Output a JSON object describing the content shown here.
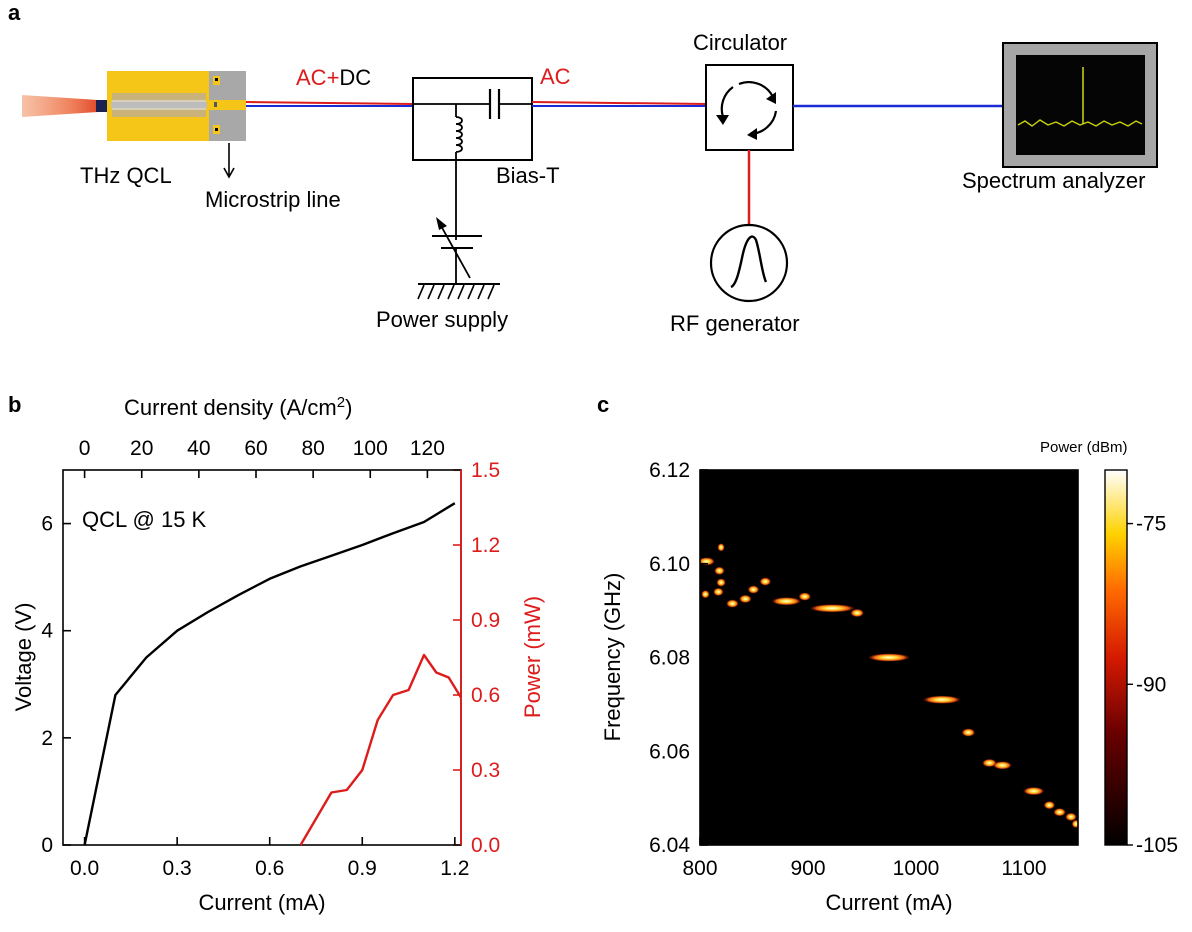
{
  "panel_a": {
    "label": "a",
    "qcl_label": "THz QCL",
    "microstrip_label": "Microstrip line",
    "acdc_ac": "AC",
    "acdc_plus": "+",
    "acdc_dc": "DC",
    "ac_label": "AC",
    "bias_t_label": "Bias-T",
    "circulator_label": "Circulator",
    "power_supply_label": "Power supply",
    "rf_generator_label": "RF generator",
    "spectrum_analyzer_label": "Spectrum analyzer",
    "colors": {
      "signal_red": "#dd1c1c",
      "line_blue": "#1a2bd6",
      "chip_gold": "#f5c518"
    }
  },
  "panel_b": {
    "label": "b",
    "annotation": "QCL @ 15 K",
    "chart_data": {
      "type": "line",
      "xlabel": "Current (mA)",
      "top_xlabel_text": "Current density (A/cm",
      "top_xlabel_sup": "2",
      "top_xlabel_close": ")",
      "ylabel_left": "Voltage (V)",
      "ylabel_right": "Power (mW)",
      "xlim": [
        -0.07,
        1.22
      ],
      "ylim_left": [
        0,
        7
      ],
      "ylim_right": [
        0,
        1.5
      ],
      "x_ticks": [
        "0.0",
        "0.3",
        "0.6",
        "0.9",
        "1.2"
      ],
      "x_tick_values": [
        0.0,
        0.3,
        0.6,
        0.9,
        1.2
      ],
      "top_ticks": [
        "0",
        "20",
        "40",
        "60",
        "80",
        "100",
        "120"
      ],
      "top_tick_values": [
        0,
        20,
        40,
        60,
        80,
        100,
        120
      ],
      "current_density_per_mA": 108,
      "y_left_ticks": [
        "0",
        "2",
        "4",
        "6"
      ],
      "y_left_tick_values": [
        0,
        2,
        4,
        6
      ],
      "y_right_ticks": [
        "0.0",
        "0.3",
        "0.6",
        "0.9",
        "1.2",
        "1.5"
      ],
      "y_right_tick_values": [
        0.0,
        0.3,
        0.6,
        0.9,
        1.2,
        1.5
      ],
      "series": [
        {
          "axis": "left",
          "color": "#000000",
          "x": [
            0.0,
            0.1,
            0.2,
            0.3,
            0.4,
            0.5,
            0.6,
            0.7,
            0.8,
            0.9,
            1.0,
            1.1,
            1.2
          ],
          "y": [
            0.0,
            2.8,
            3.5,
            4.0,
            4.35,
            4.67,
            4.97,
            5.2,
            5.4,
            5.6,
            5.82,
            6.03,
            6.38
          ]
        },
        {
          "axis": "right",
          "color": "#dd1c1c",
          "x": [
            0.7,
            0.8,
            0.85,
            0.9,
            0.95,
            1.0,
            1.05,
            1.1,
            1.14,
            1.18,
            1.22
          ],
          "y": [
            0.0,
            0.21,
            0.22,
            0.3,
            0.5,
            0.6,
            0.62,
            0.76,
            0.69,
            0.67,
            0.59
          ]
        }
      ]
    }
  },
  "panel_c": {
    "label": "c",
    "chart_data": {
      "type": "heatmap",
      "xlabel": "Current (mA)",
      "ylabel": "Frequency (GHz)",
      "colorbar_label": "Power (dBm)",
      "xlim": [
        800,
        1150
      ],
      "ylim": [
        6.04,
        6.12
      ],
      "x_ticks": [
        "800",
        "900",
        "1000",
        "1100"
      ],
      "x_tick_values": [
        800,
        900,
        1000,
        1100
      ],
      "y_ticks": [
        "6.04",
        "6.06",
        "6.08",
        "6.10",
        "6.12"
      ],
      "y_tick_values": [
        6.04,
        6.06,
        6.08,
        6.1,
        6.12
      ],
      "colorbar_range": [
        -105,
        -70
      ],
      "colorbar_ticks": [
        "-75",
        "-90",
        "-105"
      ],
      "colorbar_tick_values": [
        -75,
        -90,
        -105
      ],
      "background_level": -105,
      "peaks": [
        {
          "x0": 800,
          "x1": 812,
          "f": 6.1005
        },
        {
          "x0": 803,
          "x1": 807,
          "f": 6.0935
        },
        {
          "x0": 815,
          "x1": 821,
          "f": 6.0985
        },
        {
          "x0": 817,
          "x1": 822,
          "f": 6.096
        },
        {
          "x0": 814,
          "x1": 820,
          "f": 6.094
        },
        {
          "x0": 818,
          "x1": 821,
          "f": 6.1035
        },
        {
          "x0": 826,
          "x1": 834,
          "f": 6.0915
        },
        {
          "x0": 838,
          "x1": 846,
          "f": 6.0925
        },
        {
          "x0": 846,
          "x1": 853,
          "f": 6.0945
        },
        {
          "x0": 857,
          "x1": 864,
          "f": 6.0962
        },
        {
          "x0": 868,
          "x1": 892,
          "f": 6.092
        },
        {
          "x0": 893,
          "x1": 901,
          "f": 6.093
        },
        {
          "x0": 903,
          "x1": 942,
          "f": 6.0905
        },
        {
          "x0": 941,
          "x1": 950,
          "f": 6.0895
        },
        {
          "x0": 957,
          "x1": 993,
          "f": 6.08
        },
        {
          "x0": 1008,
          "x1": 1040,
          "f": 6.071
        },
        {
          "x0": 1044,
          "x1": 1053,
          "f": 6.064
        },
        {
          "x0": 1063,
          "x1": 1073,
          "f": 6.0575
        },
        {
          "x0": 1073,
          "x1": 1087,
          "f": 6.057
        },
        {
          "x0": 1101,
          "x1": 1117,
          "f": 6.0515
        },
        {
          "x0": 1120,
          "x1": 1127,
          "f": 6.0485
        },
        {
          "x0": 1129,
          "x1": 1137,
          "f": 6.047
        },
        {
          "x0": 1140,
          "x1": 1147,
          "f": 6.046
        },
        {
          "x0": 1146,
          "x1": 1150,
          "f": 6.0445
        }
      ]
    }
  }
}
